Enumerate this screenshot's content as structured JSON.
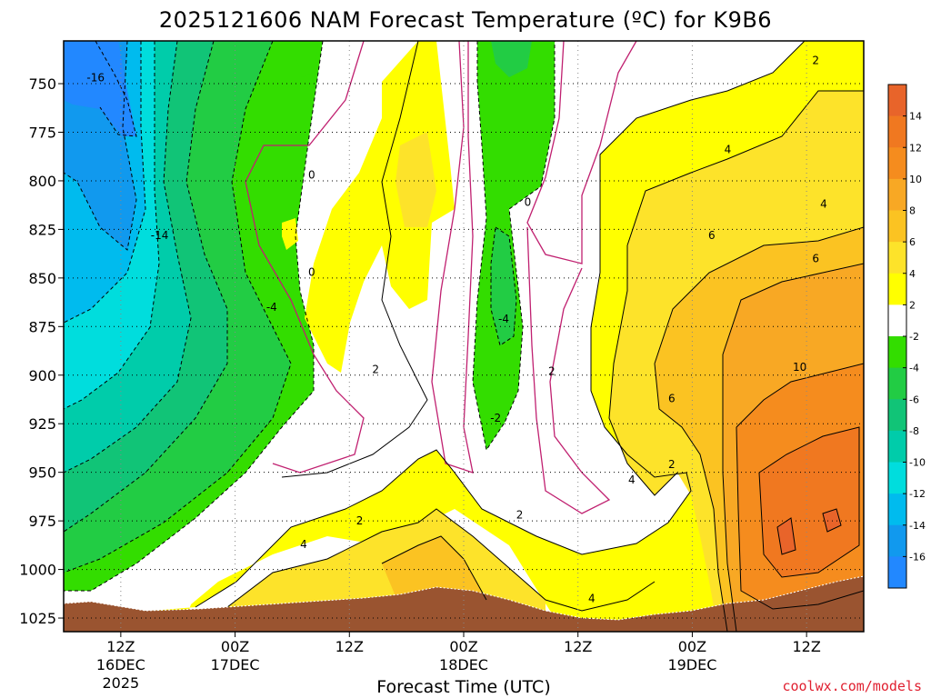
{
  "chart_data": {
    "type": "heatmap",
    "title": "2025121606 NAM Forecast Temperature (ºC) for K9B6",
    "xlabel": "Forecast Time (UTC)",
    "ylabel": "",
    "y_axis": {
      "ticks": [
        "750",
        "775",
        "800",
        "825",
        "850",
        "875",
        "900",
        "925",
        "950",
        "975",
        "1000",
        "1025"
      ],
      "range_hpa": [
        728,
        1032
      ]
    },
    "x_axis": {
      "ticks": [
        {
          "hour": "12Z",
          "day": "16DEC",
          "year": "2025"
        },
        {
          "hour": "00Z",
          "day": "17DEC",
          "year": ""
        },
        {
          "hour": "12Z",
          "day": "",
          "year": ""
        },
        {
          "hour": "00Z",
          "day": "18DEC",
          "year": ""
        },
        {
          "hour": "12Z",
          "day": "",
          "year": ""
        },
        {
          "hour": "00Z",
          "day": "19DEC",
          "year": ""
        },
        {
          "hour": "12Z",
          "day": "",
          "year": ""
        }
      ],
      "range": [
        "2025-12-16T06Z",
        "2025-12-19T18Z"
      ]
    },
    "colorbar": {
      "labels": [
        "14",
        "12",
        "10",
        "8",
        "6",
        "4",
        "2",
        "-2",
        "-4",
        "-6",
        "-8",
        "-10",
        "-12",
        "-14",
        "-16"
      ],
      "colors": [
        "#e8642a",
        "#f07820",
        "#f58c1e",
        "#f8a824",
        "#fbc322",
        "#fde32a",
        "#ffff00",
        "#ffffff",
        "#33dd00",
        "#22cc44",
        "#11c477",
        "#00ccaa",
        "#00dddd",
        "#00bbee",
        "#1199ee",
        "#2288ff"
      ]
    },
    "contour_labels": [
      {
        "text": "-16",
        "t": 0.04,
        "p": 747
      },
      {
        "text": "-14",
        "t": 0.12,
        "p": 828
      },
      {
        "text": "-4",
        "t": 0.26,
        "p": 865
      },
      {
        "text": "0",
        "t": 0.31,
        "p": 847
      },
      {
        "text": "0",
        "t": 0.31,
        "p": 797
      },
      {
        "text": "2",
        "t": 0.39,
        "p": 897
      },
      {
        "text": "-4",
        "t": 0.55,
        "p": 871
      },
      {
        "text": "-2",
        "t": 0.54,
        "p": 922
      },
      {
        "text": "0",
        "t": 0.58,
        "p": 811
      },
      {
        "text": "2",
        "t": 0.61,
        "p": 898
      },
      {
        "text": "2",
        "t": 0.37,
        "p": 975
      },
      {
        "text": "4",
        "t": 0.3,
        "p": 987
      },
      {
        "text": "2",
        "t": 0.57,
        "p": 972
      },
      {
        "text": "4",
        "t": 0.66,
        "p": 1015
      },
      {
        "text": "4",
        "t": 0.71,
        "p": 954
      },
      {
        "text": "2",
        "t": 0.76,
        "p": 946
      },
      {
        "text": "6",
        "t": 0.76,
        "p": 912
      },
      {
        "text": "10",
        "t": 0.92,
        "p": 896
      },
      {
        "text": "4",
        "t": 0.83,
        "p": 784
      },
      {
        "text": "6",
        "t": 0.81,
        "p": 828
      },
      {
        "text": "6",
        "t": 0.94,
        "p": 840
      },
      {
        "text": "4",
        "t": 0.95,
        "p": 812
      },
      {
        "text": "2",
        "t": 0.94,
        "p": 738
      }
    ],
    "grid": true,
    "colors": {
      "ground": "#9a5430",
      "contour_zero": "#c02070",
      "frame": "#000000"
    }
  },
  "credit": "coolwx.com/models"
}
